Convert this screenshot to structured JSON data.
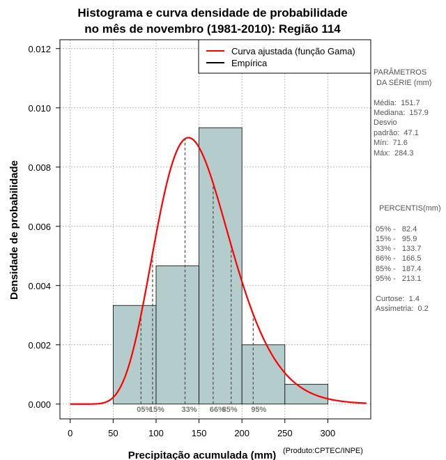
{
  "chart_data": {
    "type": "bar",
    "title_line1": "Histograma e curva densidade de probabilidade",
    "title_line2": "no mês de novembro (1981-2010): Região 114",
    "xlabel": "Precipitação acumulada (mm)",
    "ylabel": "Densidade de probabilidade",
    "xlim": [
      -12,
      350
    ],
    "ylim": [
      -0.0005,
      0.0123
    ],
    "x_ticks": [
      0,
      50,
      100,
      150,
      200,
      250,
      300
    ],
    "x_tick_labels": [
      "0",
      "50",
      "100",
      "150",
      "200",
      "250",
      "300"
    ],
    "y_ticks": [
      0,
      0.002,
      0.004,
      0.006,
      0.008,
      0.01,
      0.012
    ],
    "y_tick_labels": [
      "0.000",
      "0.002",
      "0.004",
      "0.006",
      "0.008",
      "0.010",
      "0.012"
    ],
    "grid": true,
    "bars": [
      {
        "x0": 50,
        "x1": 100,
        "value": 0.00333
      },
      {
        "x0": 100,
        "x1": 150,
        "value": 0.00467
      },
      {
        "x0": 150,
        "x1": 200,
        "value": 0.00933
      },
      {
        "x0": 200,
        "x1": 250,
        "value": 0.002
      },
      {
        "x0": 250,
        "x1": 300,
        "value": 0.00067
      }
    ],
    "gamma_fit": {
      "shape": 10.8,
      "scale": 14.05
    },
    "percentile_lines": [
      {
        "label": "05%",
        "x": 82.4
      },
      {
        "label": "15%",
        "x": 95.9
      },
      {
        "label": "33%",
        "x": 133.7
      },
      {
        "label": "66%",
        "x": 166.5
      },
      {
        "label": "85%",
        "x": 187.4
      },
      {
        "label": "95%",
        "x": 213.1
      }
    ],
    "legend": [
      {
        "label": "Curva ajustada (função Gama)",
        "color": "#ff0000"
      },
      {
        "label": "Empírica",
        "color": "#000000"
      }
    ],
    "legend_position": "top-right"
  },
  "colors": {
    "bar_fill": "#b4cccc",
    "curve": "#ff0000",
    "grid": "#aaaaaa",
    "percentile_line": "#555555",
    "percentile_label": "#777777",
    "side_text": "#555555"
  },
  "side_panel": {
    "params_header_1": "PARÂMETROS",
    "params_header_2": "DA SÉRIE (mm)",
    "media": "Média:  151.7",
    "mediana": "Mediana:  157.9",
    "desvio_1": "Desvio",
    "desvio_2": "padrão:  47.1",
    "min": "Mín:  71.6",
    "max": "Máx:  284.3",
    "percentis_header": "PERCENTIS(mm)",
    "p05": "05% -   82.4",
    "p15": "15% -   95.9",
    "p33": "33% -   133.7",
    "p66": "66% -   166.5",
    "p85": "85% -   187.4",
    "p95": "95% -   213.1",
    "curtose": "Curtose:  1.4",
    "assimetria": "Assimetria:  0.2"
  },
  "credit": "(Produto:CPTEC/INPE)"
}
